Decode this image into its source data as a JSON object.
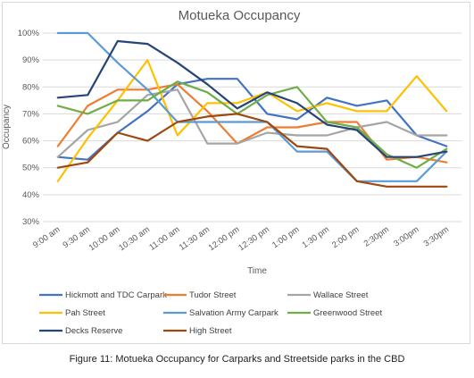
{
  "chart_data": {
    "type": "line",
    "title": "Motueka Occupancy",
    "xlabel": "Time",
    "ylabel": "Occupancy",
    "ylim": [
      30,
      100
    ],
    "yticks": [
      "30%",
      "40%",
      "50%",
      "60%",
      "70%",
      "80%",
      "90%",
      "100%"
    ],
    "grid": true,
    "legend_position": "bottom",
    "categories": [
      "9:00 am",
      "9:30 am",
      "10:00 am",
      "10:30 am",
      "11:00 am",
      "11:30 am",
      "12:00 pm",
      "12:30 pm",
      "1:00 pm",
      "1:30 pm",
      "2:00 pm",
      "2:30pm",
      "3:00pm",
      "3:30pm"
    ],
    "series": [
      {
        "name": "Hickmott and TDC Carpark",
        "color": "#4472c4",
        "values": [
          54,
          53,
          63,
          71,
          81,
          83,
          83,
          70,
          68,
          76,
          73,
          75,
          62,
          58
        ]
      },
      {
        "name": "Tudor Street",
        "color": "#ed7d31",
        "values": [
          58,
          73,
          79,
          79,
          81,
          71,
          59,
          65,
          65,
          67,
          67,
          53,
          54,
          52
        ]
      },
      {
        "name": "Wallace Street",
        "color": "#a5a5a5",
        "values": [
          54,
          64,
          67,
          77,
          79,
          59,
          59,
          63,
          62,
          62,
          65,
          67,
          62,
          62
        ]
      },
      {
        "name": "Pah Street",
        "color": "#ffc000",
        "values": [
          45,
          61,
          75,
          90,
          62,
          74,
          74,
          78,
          71,
          74,
          71,
          71,
          84,
          71
        ]
      },
      {
        "name": "Salvation Army Carpark",
        "color": "#5b9bd5",
        "values": [
          100,
          100,
          89,
          79,
          67,
          67,
          67,
          67,
          56,
          56,
          45,
          45,
          45,
          56
        ]
      },
      {
        "name": "Greenwood Street",
        "color": "#70ad47",
        "values": [
          73,
          70,
          75,
          75,
          82,
          78,
          70,
          77,
          80,
          67,
          65,
          55,
          50,
          57
        ]
      },
      {
        "name": "Decks Reserve",
        "color": "#264478",
        "values": [
          76,
          77,
          97,
          96,
          89,
          81,
          72,
          78,
          74,
          66,
          64,
          54,
          54,
          56
        ]
      },
      {
        "name": "High Street",
        "color": "#9e480e",
        "values": [
          50,
          52,
          63,
          60,
          67,
          69,
          70,
          67,
          58,
          57,
          45,
          43,
          43,
          43
        ]
      }
    ]
  },
  "caption": "Figure 11:  Motueka Occupancy for Carparks and Streetside parks in the CBD"
}
